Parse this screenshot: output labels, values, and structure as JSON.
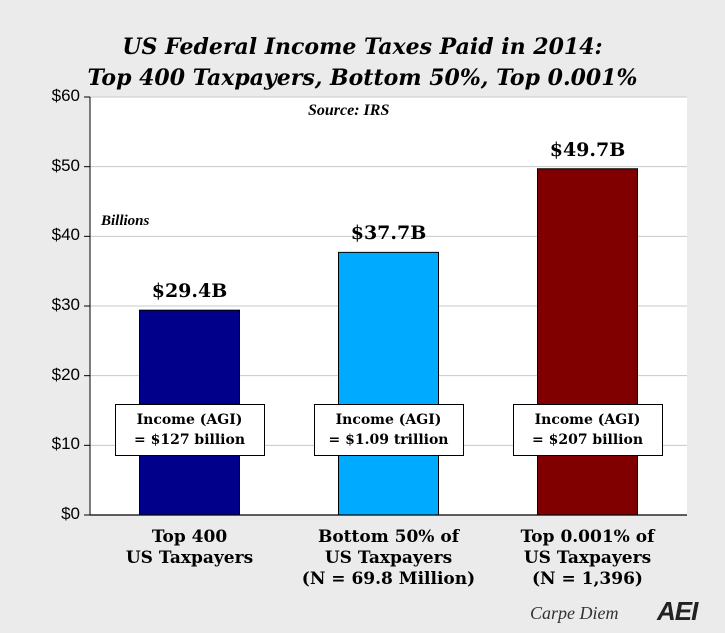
{
  "chart_data": {
    "type": "bar",
    "title": "US Federal Income Taxes Paid in 2014:",
    "subtitle": "Top 400 Taxpayers, Bottom 50%, Top 0.001%",
    "source": "Source: IRS",
    "unit_label": "Billions",
    "ylim": [
      0,
      60
    ],
    "yticks": [
      {
        "value": 0,
        "label": "$0"
      },
      {
        "value": 10,
        "label": "$10"
      },
      {
        "value": 20,
        "label": "$20"
      },
      {
        "value": 30,
        "label": "$30"
      },
      {
        "value": 40,
        "label": "$40"
      },
      {
        "value": 50,
        "label": "$50"
      },
      {
        "value": 60,
        "label": "$60"
      }
    ],
    "grid": true,
    "bars": [
      {
        "category_lines": [
          "Top 400",
          "US Taxpayers"
        ],
        "value": 29.4,
        "value_label": "$29.4B",
        "color": "#00008b",
        "note_lines": [
          "Income (AGI)",
          "= $127 billion"
        ]
      },
      {
        "category_lines": [
          "Bottom 50% of",
          "US Taxpayers",
          "(N = 69.8 Million)"
        ],
        "value": 37.7,
        "value_label": "$37.7B",
        "color": "#00aaff",
        "note_lines": [
          "Income (AGI)",
          "= $1.09 trillion"
        ]
      },
      {
        "category_lines": [
          "Top 0.001% of",
          "US Taxpayers",
          "(N = 1,396)"
        ],
        "value": 49.7,
        "value_label": "$49.7B",
        "color": "#800000",
        "note_lines": [
          "Income (AGI)",
          "= $207 billion"
        ]
      }
    ]
  },
  "footer": {
    "brand": "Carpe Diem",
    "logo": "AEI"
  }
}
